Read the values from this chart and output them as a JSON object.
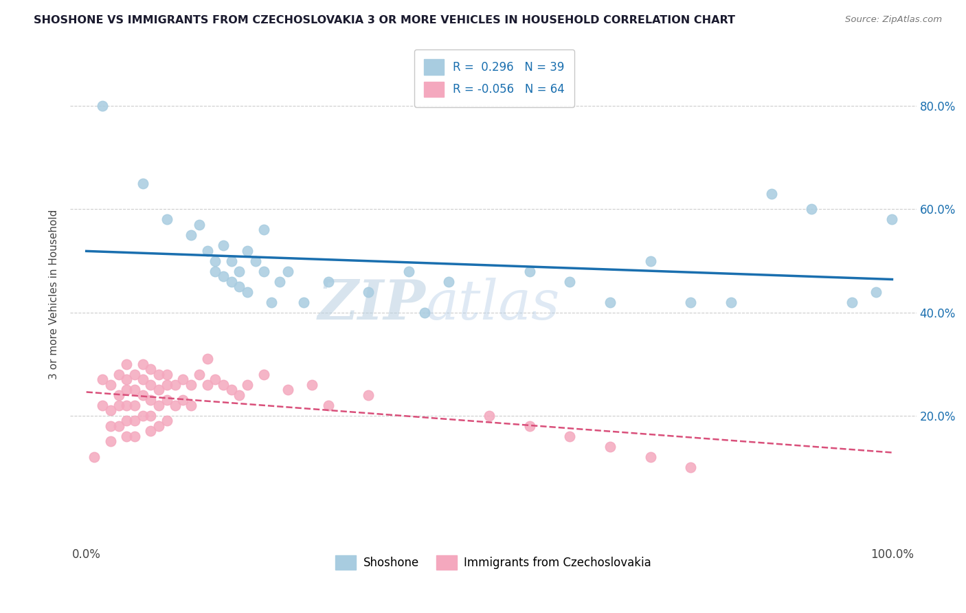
{
  "title": "SHOSHONE VS IMMIGRANTS FROM CZECHOSLOVAKIA 3 OR MORE VEHICLES IN HOUSEHOLD CORRELATION CHART",
  "source": "Source: ZipAtlas.com",
  "ylabel": "3 or more Vehicles in Household",
  "x_tick_labels": [
    "0.0%",
    "100.0%"
  ],
  "y_tick_labels": [
    "20.0%",
    "40.0%",
    "60.0%",
    "80.0%"
  ],
  "y_tick_values": [
    20,
    40,
    60,
    80
  ],
  "legend_r1": "R =  0.296",
  "legend_n1": "N = 39",
  "legend_r2": "R = -0.056",
  "legend_n2": "N = 64",
  "blue_color": "#a8cce0",
  "pink_color": "#f4a8be",
  "blue_line_color": "#1a6faf",
  "pink_line_color": "#d94f7a",
  "watermark_zip": "ZIP",
  "watermark_atlas": "atlas",
  "shoshone_x": [
    2,
    7,
    10,
    13,
    14,
    15,
    16,
    16,
    17,
    17,
    18,
    18,
    19,
    19,
    20,
    20,
    21,
    22,
    22,
    23,
    24,
    25,
    27,
    30,
    35,
    40,
    42,
    45,
    55,
    60,
    65,
    70,
    75,
    80,
    85,
    90,
    95,
    98,
    100
  ],
  "shoshone_y": [
    80,
    65,
    58,
    55,
    57,
    52,
    50,
    48,
    53,
    47,
    46,
    50,
    48,
    45,
    52,
    44,
    50,
    56,
    48,
    42,
    46,
    48,
    42,
    46,
    44,
    48,
    40,
    46,
    48,
    46,
    42,
    50,
    42,
    42,
    63,
    60,
    42,
    44,
    58
  ],
  "czech_x": [
    1,
    2,
    2,
    3,
    3,
    3,
    3,
    4,
    4,
    4,
    4,
    5,
    5,
    5,
    5,
    5,
    5,
    6,
    6,
    6,
    6,
    6,
    7,
    7,
    7,
    7,
    8,
    8,
    8,
    8,
    8,
    9,
    9,
    9,
    9,
    10,
    10,
    10,
    10,
    11,
    11,
    12,
    12,
    13,
    13,
    14,
    15,
    15,
    16,
    17,
    18,
    19,
    20,
    22,
    25,
    28,
    30,
    35,
    50,
    55,
    60,
    65,
    70,
    75
  ],
  "czech_y": [
    12,
    27,
    22,
    26,
    21,
    18,
    15,
    28,
    24,
    22,
    18,
    30,
    27,
    25,
    22,
    19,
    16,
    28,
    25,
    22,
    19,
    16,
    30,
    27,
    24,
    20,
    29,
    26,
    23,
    20,
    17,
    28,
    25,
    22,
    18,
    28,
    26,
    23,
    19,
    26,
    22,
    27,
    23,
    26,
    22,
    28,
    31,
    26,
    27,
    26,
    25,
    24,
    26,
    28,
    25,
    26,
    22,
    24,
    20,
    18,
    16,
    14,
    12,
    10
  ],
  "title_color": "#1a1a2e",
  "source_color": "#777777",
  "background_color": "#ffffff",
  "grid_color": "#cccccc",
  "legend_text_color": "#1a6faf"
}
